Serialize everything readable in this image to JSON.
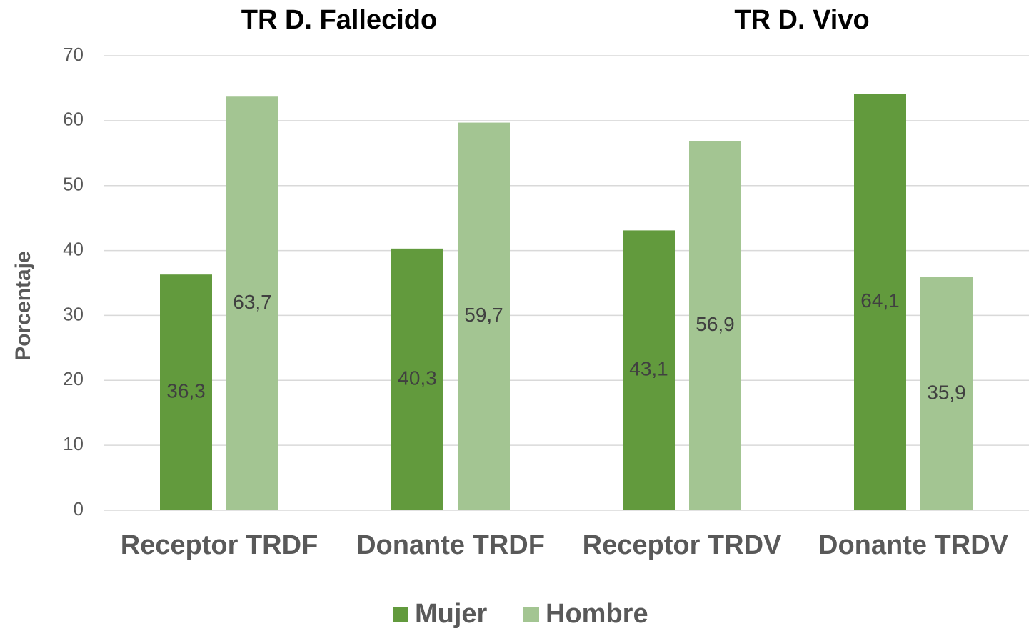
{
  "chart_data": {
    "type": "bar",
    "group_labels": [
      "TR D. Fallecido",
      "TR D. Vivo"
    ],
    "y_label": "Porcentaje",
    "categories": [
      "Receptor TRDF",
      "Donante TRDF",
      "Receptor TRDV",
      "Donante TRDV"
    ],
    "series": [
      {
        "name": "Mujer",
        "color": "#629a3d",
        "values": [
          36.3,
          40.3,
          43.1,
          64.1
        ],
        "value_labels": [
          "36,3",
          "40,3",
          "43,1",
          "64,1"
        ]
      },
      {
        "name": "Hombre",
        "color": "#a3c592",
        "values": [
          63.7,
          59.7,
          56.9,
          35.9
        ],
        "value_labels": [
          "63,7",
          "59,7",
          "56,9",
          "35,9"
        ]
      }
    ],
    "ylim": [
      0,
      70
    ],
    "yticks": [
      0,
      10,
      20,
      30,
      40,
      50,
      60,
      70
    ],
    "grid": true,
    "legend": "bottom"
  }
}
